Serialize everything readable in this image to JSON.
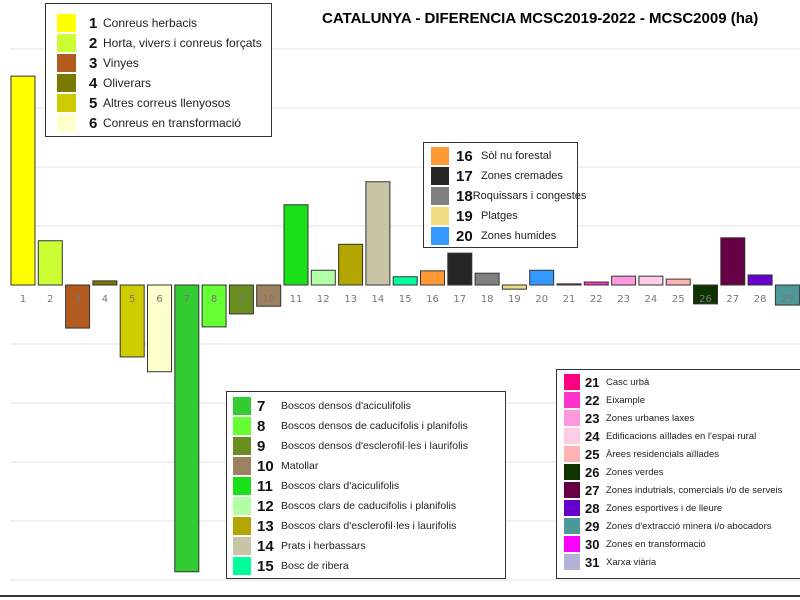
{
  "chart_data": {
    "type": "bar",
    "title": "CATALUNYA - DIFERENCIA MCSC2019-2022 - MCSC2009 (ha)",
    "xlabel": "",
    "ylabel": "",
    "grid": true,
    "y_tick_labels_visible": false,
    "ylim": [
      -5,
      4
    ],
    "categories": [
      "1",
      "2",
      "3",
      "4",
      "5",
      "6",
      "7",
      "8",
      "9",
      "10",
      "11",
      "12",
      "13",
      "14",
      "15",
      "16",
      "17",
      "18",
      "19",
      "20",
      "21",
      "22",
      "23",
      "24",
      "25",
      "26",
      "27",
      "28",
      "29"
    ],
    "values": [
      3.54,
      0.75,
      -0.73,
      0.07,
      -1.22,
      -1.47,
      -4.86,
      -0.71,
      -0.49,
      -0.36,
      1.36,
      0.25,
      0.69,
      1.75,
      0.14,
      0.24,
      0.54,
      0.2,
      -0.07,
      0.25,
      0.02,
      0.05,
      0.15,
      0.15,
      0.1,
      -0.32,
      0.8,
      0.17,
      -0.34
    ],
    "colors": [
      "#ffff00",
      "#ccff33",
      "#b35a1f",
      "#7a7a00",
      "#cccc00",
      "#ffffcc",
      "#33cc33",
      "#66ff33",
      "#6b8e23",
      "#9c8060",
      "#19e019",
      "#b3ffa6",
      "#b3a600",
      "#c8c4a6",
      "#00ff99",
      "#ff9933",
      "#262626",
      "#808080",
      "#f0dc82",
      "#3399ff",
      "#ff0080",
      "#ff33cc",
      "#ff99dd",
      "#ffcce6",
      "#ffb3b3",
      "#0f3300",
      "#660044",
      "#6600cc",
      "#4d9999",
      "#ff00ff",
      "#b3b3d9"
    ],
    "legend": [
      {
        "num": "1",
        "label": "Conreus herbacis"
      },
      {
        "num": "2",
        "label": "Horta, vivers i conreus forçats"
      },
      {
        "num": "3",
        "label": "Vinyes"
      },
      {
        "num": "4",
        "label": "Oliverars"
      },
      {
        "num": "5",
        "label": "Altres correus llenyosos"
      },
      {
        "num": "6",
        "label": "Conreus en transformació"
      },
      {
        "num": "7",
        "label": "Boscos densos d'aciculifolis"
      },
      {
        "num": "8",
        "label": "Boscos densos de caducifolis i planifolis"
      },
      {
        "num": "9",
        "label": "Boscos densos d'esclerofil·les i laurifolis"
      },
      {
        "num": "10",
        "label": "Matollar"
      },
      {
        "num": "11",
        "label": "Boscos clars d'aciculifolis"
      },
      {
        "num": "12",
        "label": "Boscos clars de caducifolis i planifolis"
      },
      {
        "num": "13",
        "label": "Boscos clars d'esclerofil·les i laurifolis"
      },
      {
        "num": "14",
        "label": "Prats i herbassars"
      },
      {
        "num": "15",
        "label": "Bosc de ribera"
      },
      {
        "num": "16",
        "label": "Sòl nu forestal"
      },
      {
        "num": "17",
        "label": "Zones cremades"
      },
      {
        "num": "18",
        "label": "Roquissars i congestes"
      },
      {
        "num": "19",
        "label": "Platges"
      },
      {
        "num": "20",
        "label": "Zones humides"
      },
      {
        "num": "21",
        "label": "Casc urbà"
      },
      {
        "num": "22",
        "label": "Eixample"
      },
      {
        "num": "23",
        "label": "Zones urbanes laxes"
      },
      {
        "num": "24",
        "label": "Edificacions aïllades en l'espai rural"
      },
      {
        "num": "25",
        "label": "Àrees residencials aïllades"
      },
      {
        "num": "26",
        "label": "Zones verdes"
      },
      {
        "num": "27",
        "label": "Zones indutrials, comercials i/o de serveis"
      },
      {
        "num": "28",
        "label": "Zones esportives i de lleure"
      },
      {
        "num": "29",
        "label": "Zones d'extracció minera i/o abocadors"
      },
      {
        "num": "30",
        "label": "Zones en transformació"
      },
      {
        "num": "31",
        "label": "Xarxa viària"
      }
    ],
    "legend_groups": [
      [
        0,
        5
      ],
      [
        15,
        19
      ],
      [
        6,
        14
      ],
      [
        20,
        30
      ]
    ]
  }
}
